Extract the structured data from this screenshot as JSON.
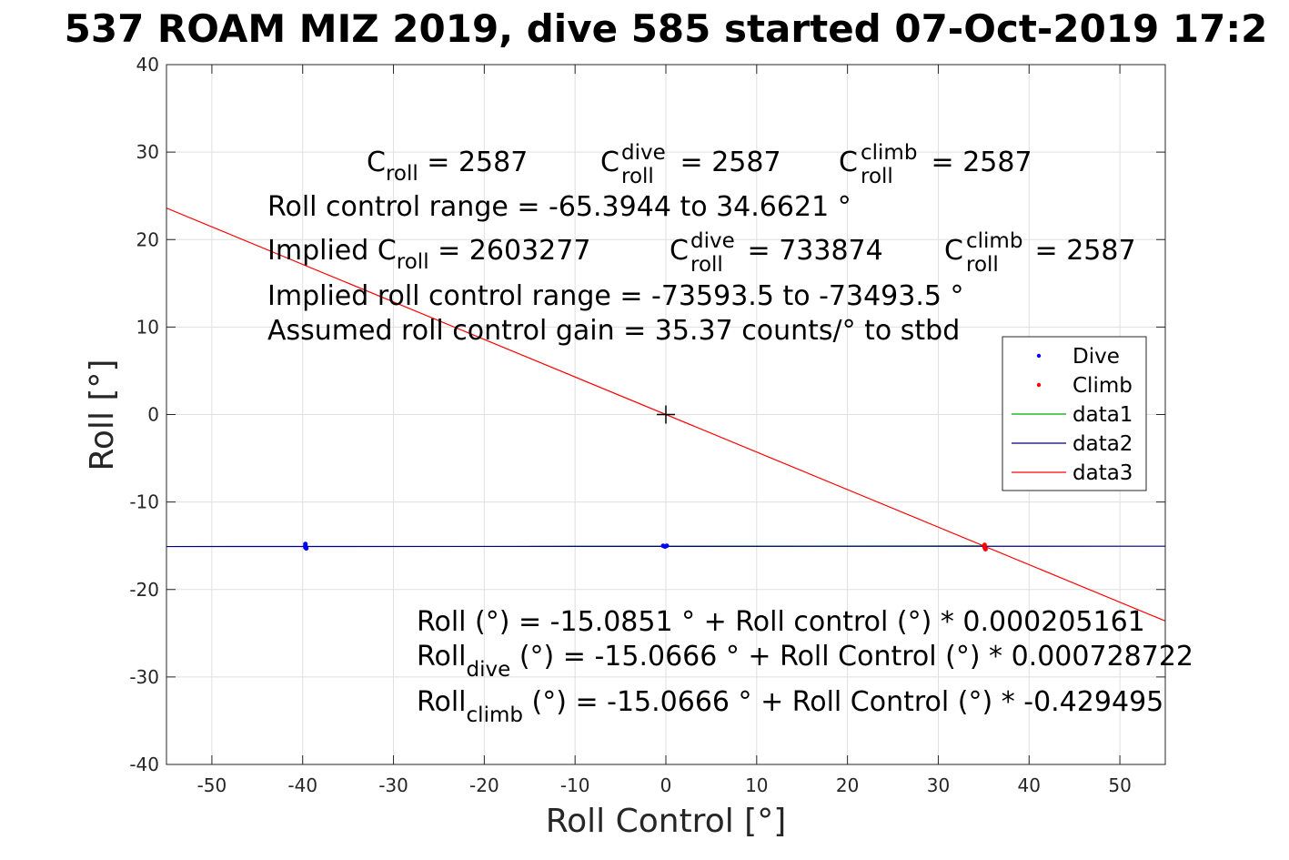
{
  "chart_data": {
    "type": "scatter",
    "title": "537 ROAM MIZ 2019, dive 585 started 07-Oct-2019 17:2",
    "xlabel": "Roll Control [°]",
    "ylabel": "Roll [°]",
    "xlim": [
      -55,
      55
    ],
    "ylim": [
      -40,
      40
    ],
    "xticks": [
      -50,
      -40,
      -30,
      -20,
      -10,
      0,
      10,
      20,
      30,
      40,
      50
    ],
    "yticks": [
      -40,
      -30,
      -20,
      -10,
      0,
      10,
      20,
      30,
      40
    ],
    "grid": true,
    "legend_position": "right",
    "series": [
      {
        "name": "Dive",
        "kind": "points",
        "color": "#0000ff",
        "points": [
          [
            -39.7,
            -14.8
          ],
          [
            -39.7,
            -15.0
          ],
          [
            -39.7,
            -15.2
          ],
          [
            -39.6,
            -15.3
          ],
          [
            -0.3,
            -15.0
          ],
          [
            -0.1,
            -15.1
          ],
          [
            0.1,
            -15.0
          ]
        ]
      },
      {
        "name": "Climb",
        "kind": "points",
        "color": "#ff0000",
        "points": [
          [
            35.1,
            -14.9
          ],
          [
            35.1,
            -15.2
          ],
          [
            35.2,
            -15.4
          ]
        ]
      },
      {
        "name": "data1",
        "kind": "line",
        "color": "#00aa00",
        "points": [
          [
            -15,
            -15.08
          ],
          [
            35.2,
            -15.02
          ]
        ]
      },
      {
        "name": "data2",
        "kind": "line",
        "color": "#000080",
        "points": [
          [
            -55,
            -15.09
          ],
          [
            55,
            -15.05
          ]
        ]
      },
      {
        "name": "data3",
        "kind": "line",
        "color": "#ff0000",
        "points": [
          [
            -55,
            23.6
          ],
          [
            55,
            -23.6
          ]
        ]
      }
    ],
    "center_marker": {
      "x": 0,
      "y": 0,
      "symbol": "+"
    }
  },
  "annotations": {
    "line1": {
      "c": "C",
      "c_sub": "roll",
      "c_val": " = 2587",
      "d": "C",
      "d_sup": "dive",
      "d_sub": "roll",
      "d_val": " = 2587",
      "e": "C",
      "e_sup": "climb",
      "e_sub": "roll",
      "e_val": " = 2587"
    },
    "range_text": "Roll control range = -65.3944 to 34.6621 °",
    "line3": {
      "prefix": "Implied C",
      "c_sub": "roll",
      "c_val": " = 2603277",
      "d": "C",
      "d_sup": "dive",
      "d_sub": "roll",
      "d_val": " = 733874",
      "e": "C",
      "e_sup": "climb",
      "e_sub": "roll",
      "e_val": " = 2587"
    },
    "implied_range_text": "Implied roll control range = -73593.5 to -73493.5 °",
    "gain_text": "Assumed roll control gain = 35.37 counts/° to stbd",
    "fit_all": "Roll (°) = -15.0851 ° + Roll control (°) * 0.000205161",
    "fit_dive": {
      "main": "Roll",
      "sub": "dive",
      "rest": " (°) = -15.0666 ° + Roll Control (°) * 0.000728722"
    },
    "fit_climb": {
      "main": "Roll",
      "sub": "climb",
      "rest": " (°) = -15.0666 ° + Roll Control (°) * -0.429495"
    }
  }
}
